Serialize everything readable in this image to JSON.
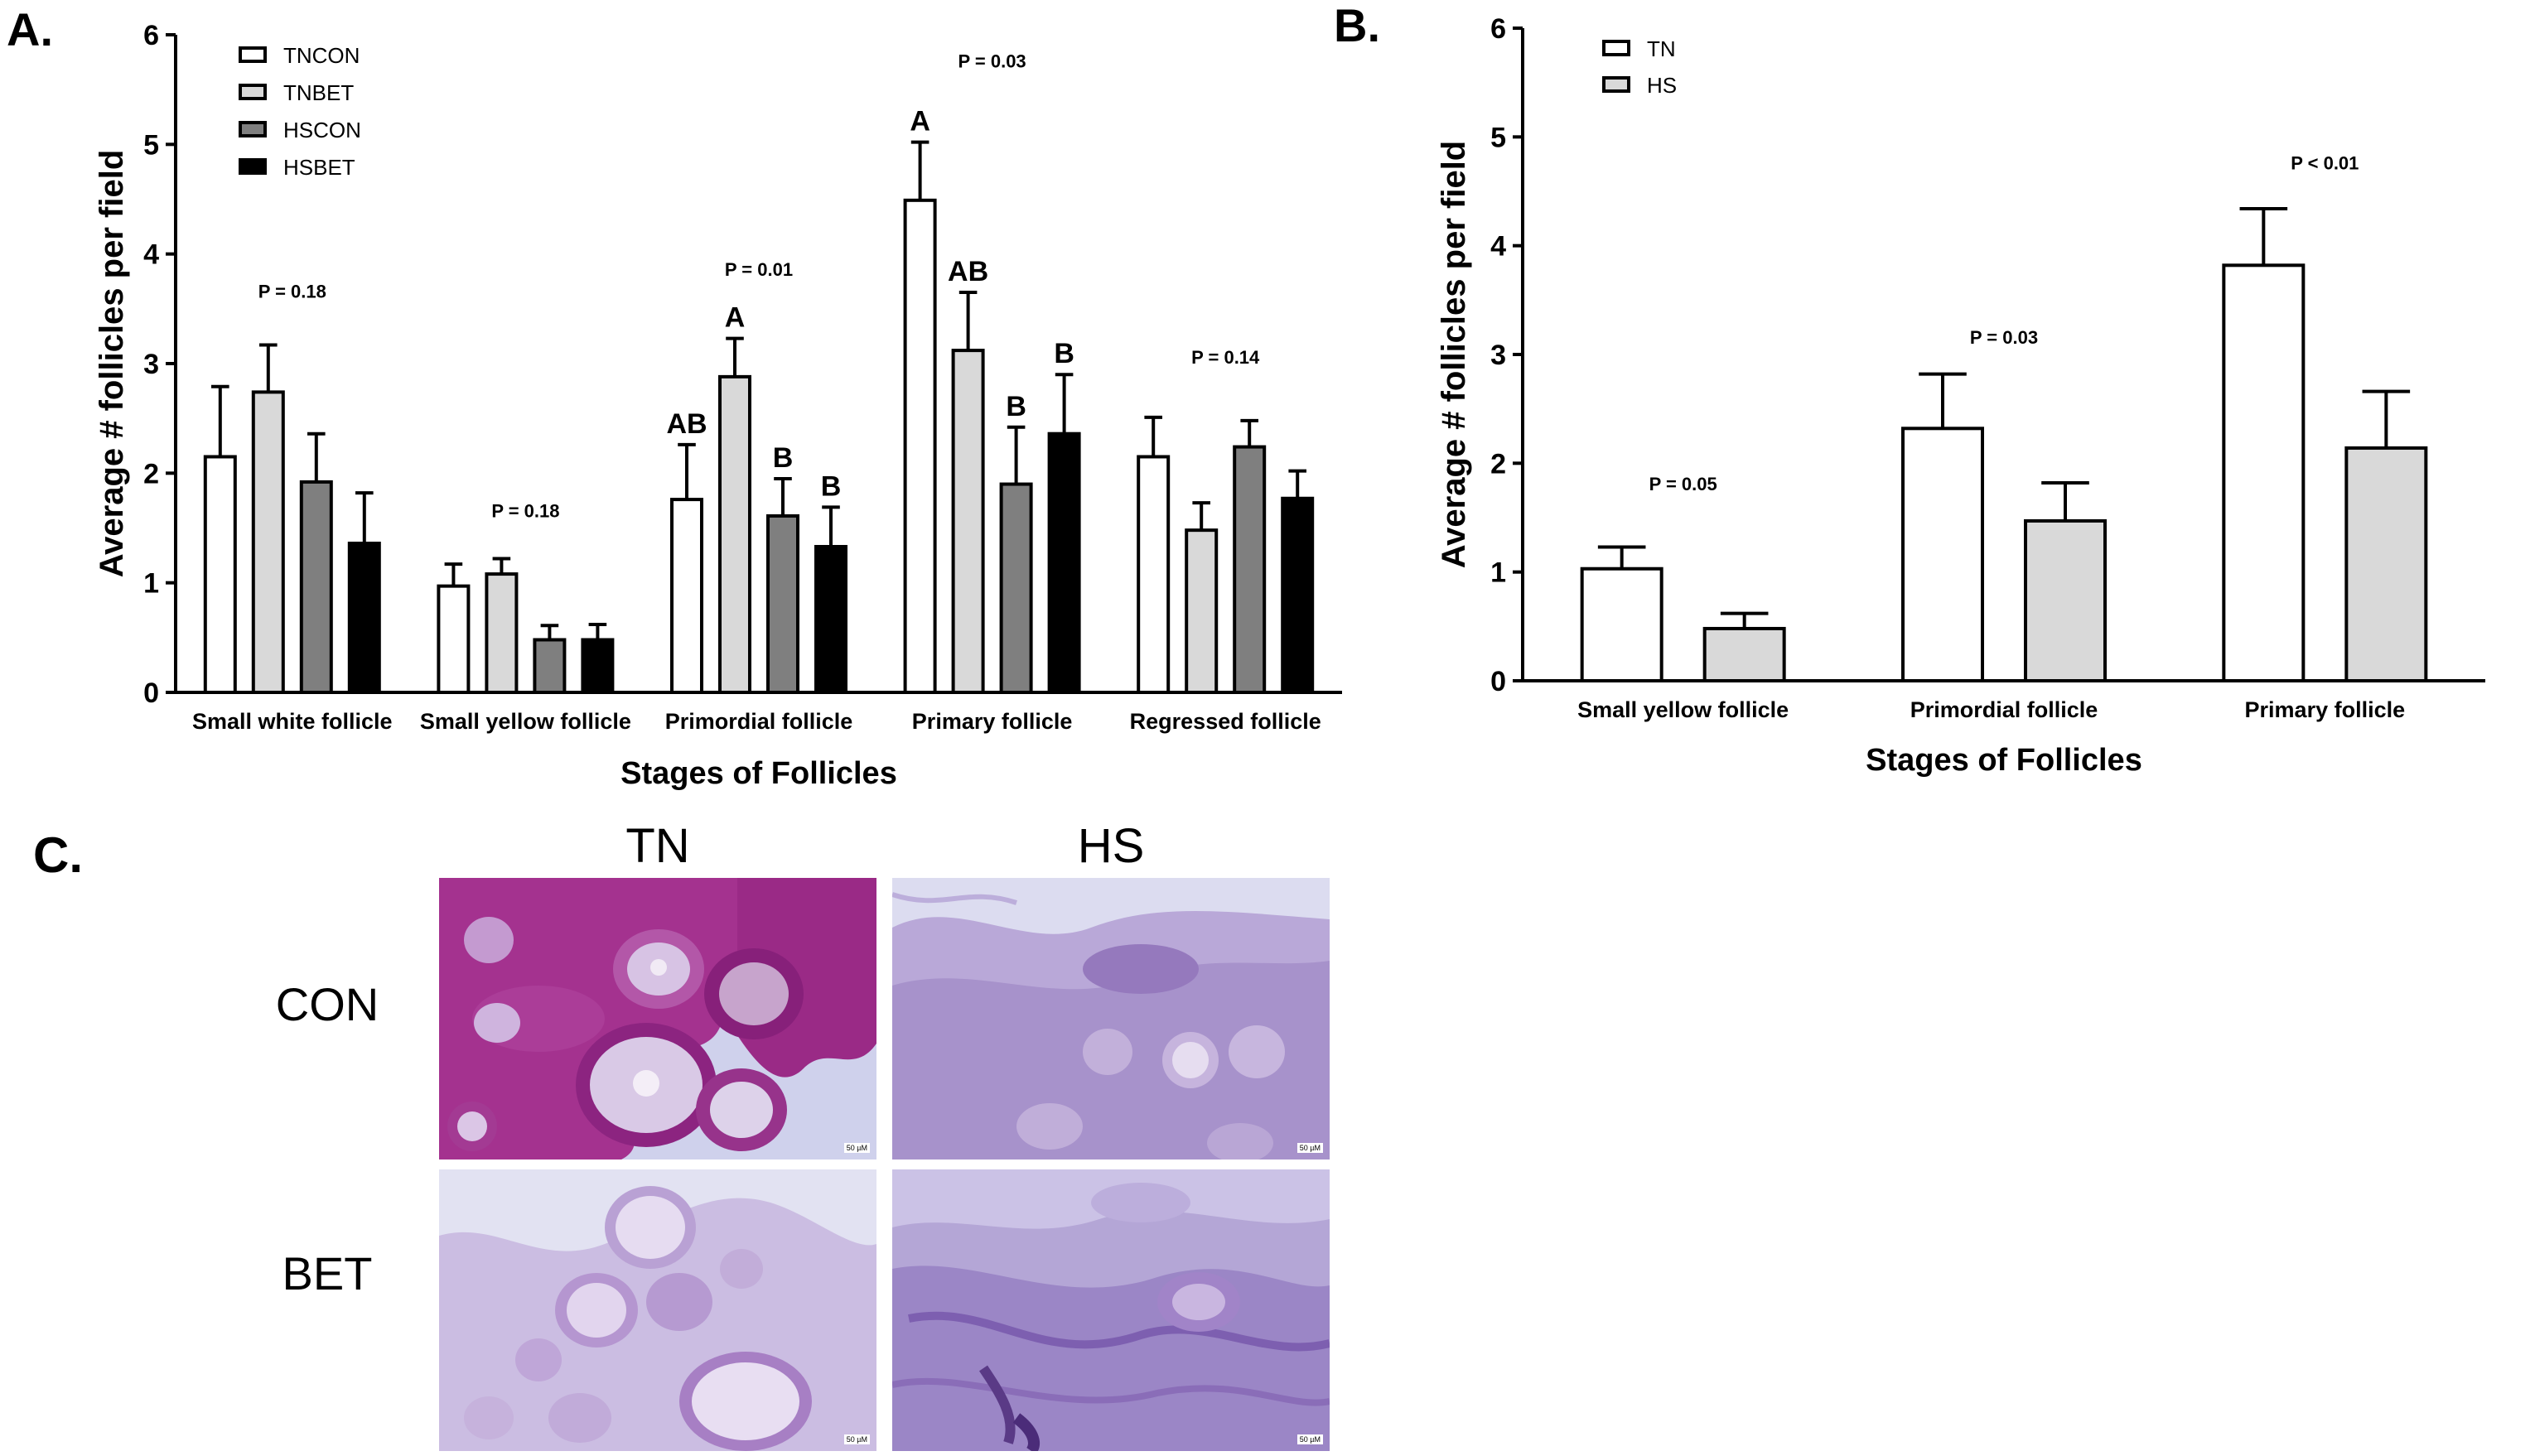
{
  "panels": {
    "A": "A.",
    "B": "B.",
    "C": "C."
  },
  "chart_data": [
    {
      "id": "A",
      "type": "bar",
      "xlabel": "Stages of Follicles",
      "ylabel": "Average # follicles per field",
      "ylim": [
        0,
        6
      ],
      "yticks": [
        0,
        1,
        2,
        3,
        4,
        5,
        6
      ],
      "categories": [
        "Small white follicle",
        "Small yellow follicle",
        "Primordial follicle",
        "Primary follicle",
        "Regressed follicle"
      ],
      "series": [
        {
          "name": "TNCON",
          "color": "#ffffff",
          "values": [
            2.15,
            0.97,
            1.76,
            4.49,
            2.15
          ],
          "errors": [
            0.64,
            0.2,
            0.5,
            0.53,
            0.36
          ]
        },
        {
          "name": "TNBET",
          "color": "#d9d9d9",
          "values": [
            2.74,
            1.08,
            2.88,
            3.12,
            1.48
          ],
          "errors": [
            0.43,
            0.14,
            0.35,
            0.53,
            0.25
          ]
        },
        {
          "name": "HSCON",
          "color": "#7f7f7f",
          "values": [
            1.92,
            0.48,
            1.61,
            1.9,
            2.24
          ],
          "errors": [
            0.44,
            0.13,
            0.34,
            0.52,
            0.24
          ]
        },
        {
          "name": "HSBET",
          "color": "#000000",
          "values": [
            1.36,
            0.48,
            1.33,
            2.36,
            1.77
          ],
          "errors": [
            0.46,
            0.14,
            0.36,
            0.54,
            0.25
          ]
        }
      ],
      "letters": [
        [
          "",
          "",
          "",
          ""
        ],
        [
          "",
          "",
          "",
          ""
        ],
        [
          "AB",
          "A",
          "B",
          "B"
        ],
        [
          "A",
          "AB",
          "B",
          "B"
        ],
        [
          "",
          "",
          "",
          ""
        ]
      ],
      "pvalues": [
        "P = 0.18",
        "P = 0.18",
        "P = 0.01",
        "P = 0.03",
        "P = 0.14"
      ],
      "pvalue_y": [
        3.6,
        1.6,
        3.8,
        5.7,
        3.0
      ],
      "legend": "top-left"
    },
    {
      "id": "B",
      "type": "bar",
      "xlabel": "Stages of Follicles",
      "ylabel": "Average # follicles per field",
      "ylim": [
        0,
        6
      ],
      "yticks": [
        0,
        1,
        2,
        3,
        4,
        5,
        6
      ],
      "categories": [
        "Small yellow follicle",
        "Primordial follicle",
        "Primary follicle"
      ],
      "series": [
        {
          "name": "TN",
          "color": "#ffffff",
          "values": [
            1.03,
            2.32,
            3.82
          ],
          "errors": [
            0.2,
            0.5,
            0.52
          ]
        },
        {
          "name": "HS",
          "color": "#d9d9d9",
          "values": [
            0.48,
            1.47,
            2.14
          ],
          "errors": [
            0.14,
            0.35,
            0.52
          ]
        }
      ],
      "pvalues": [
        "P = 0.05",
        "P = 0.03",
        "P < 0.01"
      ],
      "pvalue_y": [
        1.75,
        3.1,
        4.7
      ],
      "legend": "top-left"
    }
  ],
  "panelC": {
    "columns": [
      "TN",
      "HS"
    ],
    "rows": [
      "CON",
      "BET"
    ],
    "scale_label": "50 µM"
  }
}
